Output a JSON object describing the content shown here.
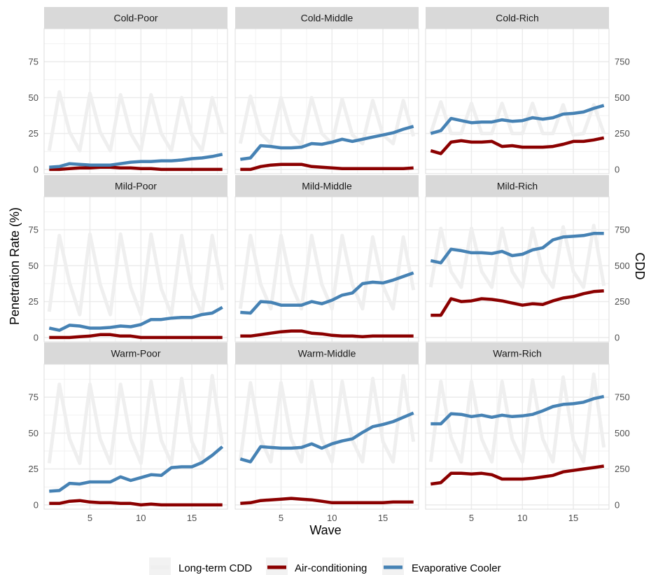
{
  "chart_data": {
    "type": "line",
    "xlabel": "Wave",
    "ylabel": "Penetration Rate (%)",
    "y2label": "CDD",
    "xlim": [
      0.5,
      18.5
    ],
    "ylim": [
      -3,
      98
    ],
    "y2lim": [
      -30,
      980
    ],
    "x_ticks": [
      5,
      10,
      15
    ],
    "y_ticks": [
      0,
      25,
      50,
      75
    ],
    "y2_ticks": [
      0,
      250,
      500,
      750
    ],
    "grid": true,
    "legend_position": "bottom",
    "legend": [
      {
        "label": "Long-term CDD",
        "color": "#efefef"
      },
      {
        "label": "Air-conditioning",
        "color": "#8b0000"
      },
      {
        "label": "Evaporative Cooler",
        "color": "#4682b4"
      }
    ],
    "x": [
      1,
      2,
      3,
      4,
      5,
      6,
      7,
      8,
      9,
      10,
      11,
      12,
      13,
      14,
      15,
      16,
      17,
      18
    ],
    "panels": [
      {
        "label": "Cold-Poor",
        "cdd": [
          130,
          540,
          260,
          130,
          530,
          260,
          130,
          520,
          250,
          130,
          520,
          250,
          130,
          500,
          240,
          130,
          500,
          250
        ],
        "ac": [
          0,
          0,
          0.5,
          1,
          1,
          1.5,
          1.5,
          1,
          1,
          0.5,
          0.5,
          0,
          0,
          0,
          0,
          0,
          0,
          0
        ],
        "ec": [
          1.5,
          2,
          4,
          3.5,
          3,
          3,
          3,
          4,
          5,
          5.5,
          5.5,
          6,
          6,
          6.5,
          7.5,
          8,
          9,
          10.5
        ]
      },
      {
        "label": "Cold-Middle",
        "cdd": [
          180,
          510,
          250,
          180,
          500,
          250,
          170,
          500,
          250,
          180,
          490,
          240,
          180,
          480,
          240,
          180,
          480,
          230
        ],
        "ac": [
          0,
          0,
          2,
          3,
          3.5,
          3.5,
          3.5,
          2,
          1.5,
          1,
          0.5,
          0.5,
          0.5,
          0.5,
          0.5,
          0.5,
          0.5,
          1
        ],
        "ec": [
          7,
          8,
          16.5,
          16,
          15,
          15,
          15.5,
          18,
          17.5,
          19,
          21,
          19.5,
          21,
          22.5,
          24,
          25.5,
          28,
          30
        ]
      },
      {
        "label": "Cold-Rich",
        "cdd": [
          250,
          470,
          250,
          250,
          460,
          250,
          250,
          460,
          250,
          250,
          460,
          250,
          250,
          450,
          240,
          250,
          450,
          250
        ],
        "ac": [
          13,
          11,
          19,
          20,
          19,
          19,
          19.5,
          16,
          16.5,
          15.5,
          15.5,
          15.5,
          16,
          17.5,
          19.5,
          19.5,
          20.5,
          22
        ],
        "ec": [
          25,
          27,
          35.5,
          34,
          32.5,
          33,
          33,
          34.5,
          33.5,
          34,
          36,
          35,
          36,
          38.5,
          39,
          40,
          42.5,
          44.5
        ]
      },
      {
        "label": "Mild-Poor",
        "cdd": [
          180,
          710,
          380,
          160,
          720,
          370,
          160,
          720,
          350,
          160,
          720,
          340,
          160,
          710,
          340,
          160,
          710,
          330
        ],
        "ac": [
          0,
          0,
          0,
          0.5,
          1,
          2,
          2,
          1,
          1,
          0,
          0,
          0,
          0,
          0,
          0,
          0,
          0,
          0
        ],
        "ec": [
          6.5,
          5,
          8.5,
          8,
          6.5,
          6.5,
          7,
          8,
          7.5,
          9,
          12.5,
          12.5,
          13.5,
          14,
          14,
          16,
          17,
          21
        ]
      },
      {
        "label": "Mild-Middle",
        "cdd": [
          200,
          710,
          370,
          200,
          710,
          370,
          200,
          710,
          370,
          200,
          710,
          370,
          200,
          700,
          360,
          200,
          700,
          330
        ],
        "ac": [
          1,
          1,
          2,
          3,
          4,
          4.5,
          4.5,
          3,
          2.5,
          1.5,
          1,
          1,
          0.5,
          1,
          1,
          1,
          1,
          1
        ],
        "ec": [
          17.5,
          17,
          25,
          24.5,
          22.5,
          22.5,
          22.5,
          25,
          23.5,
          26,
          29.5,
          31,
          37.5,
          38.5,
          38,
          40,
          42.5,
          45
        ]
      },
      {
        "label": "Mild-Rich",
        "cdd": [
          350,
          760,
          460,
          350,
          760,
          460,
          350,
          760,
          460,
          350,
          760,
          460,
          350,
          770,
          460,
          350,
          780,
          360
        ],
        "ac": [
          15.5,
          15.5,
          27,
          25,
          25.5,
          27,
          26.5,
          25.5,
          24,
          22.5,
          23.5,
          23,
          25.5,
          27.5,
          28.5,
          30.5,
          32,
          32.5
        ],
        "ec": [
          53.5,
          52,
          61.5,
          60.5,
          59,
          59,
          58.5,
          60,
          57,
          58,
          61,
          62.5,
          68,
          70,
          70.5,
          71,
          72.5,
          72.5
        ]
      },
      {
        "label": "Warm-Poor",
        "cdd": [
          290,
          840,
          460,
          290,
          840,
          460,
          290,
          840,
          460,
          290,
          860,
          450,
          290,
          880,
          440,
          290,
          900,
          420
        ],
        "ac": [
          1,
          1,
          2.5,
          3,
          2,
          1.5,
          1.5,
          1,
          1,
          0,
          0.5,
          0,
          0,
          0,
          0,
          0,
          0,
          0
        ],
        "ec": [
          9.5,
          10,
          15,
          14.5,
          16,
          16,
          16,
          19.5,
          17,
          19,
          21,
          20.5,
          26,
          26.5,
          26.5,
          29.5,
          34.5,
          40.5
        ]
      },
      {
        "label": "Warm-Middle",
        "cdd": [
          310,
          850,
          460,
          300,
          850,
          460,
          300,
          860,
          460,
          300,
          860,
          450,
          300,
          880,
          440,
          300,
          900,
          440
        ],
        "ac": [
          1,
          1.5,
          3,
          3.5,
          4,
          4.5,
          4,
          3.5,
          2.5,
          1.5,
          1.5,
          1.5,
          1.5,
          1.5,
          1.5,
          2,
          2,
          2
        ],
        "ec": [
          32,
          30,
          40.5,
          40,
          39.5,
          39.5,
          40,
          42.5,
          39.5,
          42.5,
          44.5,
          46,
          50.5,
          54.5,
          56,
          58,
          61,
          64
        ]
      },
      {
        "label": "Warm-Rich",
        "cdd": [
          300,
          860,
          470,
          300,
          860,
          460,
          300,
          860,
          460,
          300,
          870,
          460,
          300,
          890,
          450,
          300,
          910,
          400
        ],
        "ac": [
          14.5,
          15.5,
          22,
          22,
          21.5,
          22,
          21,
          18,
          18,
          18,
          18.5,
          19.5,
          20.5,
          23,
          24,
          25,
          26,
          27
        ],
        "ec": [
          56.5,
          56.5,
          63.5,
          63,
          61.5,
          62.5,
          61,
          62.5,
          61.5,
          62,
          63,
          65.5,
          68.5,
          70,
          70.5,
          71.5,
          74,
          75.5
        ]
      }
    ]
  }
}
